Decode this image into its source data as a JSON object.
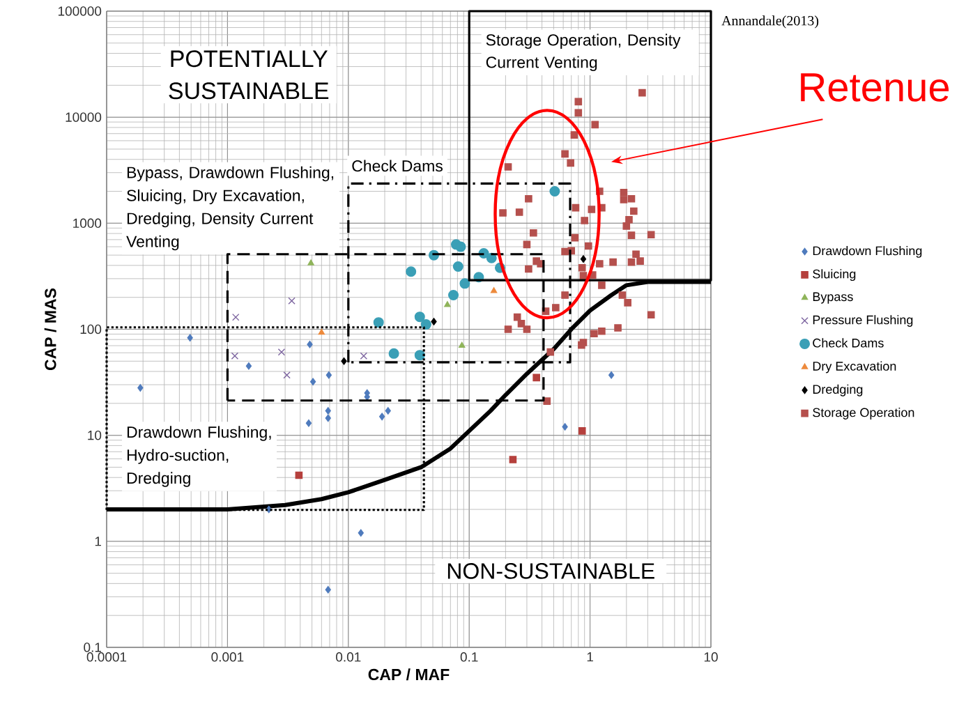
{
  "chart_data": {
    "type": "scatter",
    "xlabel": "CAP / MAF",
    "ylabel": "CAP / MAS",
    "log": "xy",
    "grid": true,
    "legend": "right",
    "xlim": [
      0.0001,
      10
    ],
    "ylim": [
      0.1,
      100000
    ],
    "xticks": [
      0.0001,
      0.001,
      0.01,
      0.1,
      1,
      10
    ],
    "yticks": [
      0.1,
      1,
      10,
      100,
      1000,
      10000,
      100000
    ],
    "annotations": [
      "Annandale(2013)",
      "POTENTIALLY SUSTAINABLE",
      "Storage Operation, Density Current Venting",
      "Check Dams",
      "Bypass, Drawdown Flushing, Sluicing, Dry Excavation, Dredging, Density Current Venting",
      "Drawdown Flushing, Hydro-suction, Dredging",
      "NON-SUSTAINABLE",
      "Retenue"
    ],
    "series": [
      {
        "type": "line",
        "color": "#000000",
        "line_style": "solid",
        "x": [
          0.0001,
          0.001,
          0.003,
          0.006,
          0.01,
          0.02,
          0.04,
          0.07,
          0.1,
          0.15,
          0.2,
          0.3,
          0.5,
          0.7,
          1,
          1.5,
          2,
          3,
          10
        ],
        "values": [
          2,
          2,
          2.2,
          2.5,
          2.9,
          3.8,
          5,
          7.5,
          11,
          17,
          24,
          38,
          65,
          100,
          150,
          210,
          260,
          280,
          280
        ]
      },
      {
        "name": "Drawdown Flushing",
        "color": "#4f7bbd",
        "marker": "diamond",
        "x": [
          0.00019,
          0.00049,
          0.0015,
          0.0048,
          0.0051,
          0.0069,
          0.0068,
          0.0068,
          0.0047,
          0.0143,
          0.0143,
          0.019,
          0.0213,
          0.0127,
          0.0068,
          0.62,
          1.5,
          0.0022
        ],
        "values": [
          28,
          83,
          45,
          72,
          32,
          37,
          17,
          14.5,
          13,
          25,
          23,
          15,
          17,
          1.2,
          0.35,
          12,
          37,
          2
        ]
      },
      {
        "name": "Sluicing",
        "color": "#b5403d",
        "marker": "square",
        "x": [
          0.0039,
          0.36,
          0.23,
          0.86
        ],
        "values": [
          4.2,
          35,
          5.9,
          11
        ]
      },
      {
        "name": "Bypass",
        "color": "#8fb45a",
        "marker": "triangle",
        "x": [
          0.0049,
          0.066,
          0.087
        ],
        "values": [
          420,
          170,
          70
        ]
      },
      {
        "name": "Pressure Flushing",
        "color": "#7d65a0",
        "marker": "cross",
        "x": [
          0.00117,
          0.0034,
          0.00115,
          0.0028,
          0.0031,
          0.0134
        ],
        "values": [
          130,
          185,
          56,
          61,
          37,
          56
        ]
      },
      {
        "name": "Check Dams",
        "color": "#3a9fb6",
        "marker": "circle",
        "x": [
          0.0178,
          0.0238,
          0.039,
          0.039,
          0.044,
          0.033,
          0.051,
          0.078,
          0.085,
          0.081,
          0.132,
          0.153,
          0.18,
          0.12,
          0.092,
          0.074,
          0.51
        ],
        "values": [
          116,
          59,
          57,
          131,
          111,
          350,
          500,
          630,
          600,
          390,
          520,
          470,
          380,
          310,
          270,
          210,
          2000
        ]
      },
      {
        "name": "Dry Excavation",
        "color": "#ed8a3c",
        "marker": "triangle",
        "x": [
          0.006,
          0.16
        ],
        "values": [
          93,
          230
        ]
      },
      {
        "name": "Dredging",
        "color": "#000000",
        "marker": "diamond",
        "x": [
          0.0092,
          0.051,
          0.88
        ],
        "values": [
          50,
          118,
          460
        ]
      },
      {
        "name": "Storage Operation",
        "color": "#b5504d",
        "marker": "square",
        "x": [
          2.7,
          0.8,
          0.8,
          1.1,
          0.74,
          0.62,
          0.69,
          0.21,
          0.31,
          0.19,
          0.26,
          0.76,
          1.03,
          1.25,
          1.2,
          1.9,
          2.2,
          1.9,
          2.3,
          2.1,
          2,
          2.2,
          3.2,
          0.34,
          0.3,
          0.9,
          0.75,
          0.97,
          0.62,
          0.7,
          0.36,
          0.31,
          0.39,
          0.86,
          1.2,
          1.55,
          2.2,
          2.4,
          2.6,
          0.88,
          1.05,
          1.25,
          0.62,
          1.85,
          2.05,
          3.2,
          0.52,
          0.43,
          0.25,
          0.27,
          0.3,
          0.21,
          1.7,
          1.25,
          1.08,
          0.88,
          0.85,
          0.47,
          0.44
        ],
        "values": [
          17000,
          14000,
          11000,
          8500,
          6800,
          4500,
          3700,
          3400,
          1700,
          1250,
          1270,
          1400,
          1350,
          1400,
          2000,
          1950,
          1700,
          1670,
          1300,
          1080,
          940,
          770,
          780,
          810,
          630,
          1060,
          730,
          610,
          540,
          550,
          440,
          370,
          415,
          380,
          415,
          430,
          430,
          510,
          440,
          320,
          325,
          260,
          210,
          210,
          178,
          137,
          160,
          148,
          130,
          113,
          100,
          100,
          103,
          96,
          91,
          75,
          71,
          61,
          21
        ]
      }
    ]
  }
}
